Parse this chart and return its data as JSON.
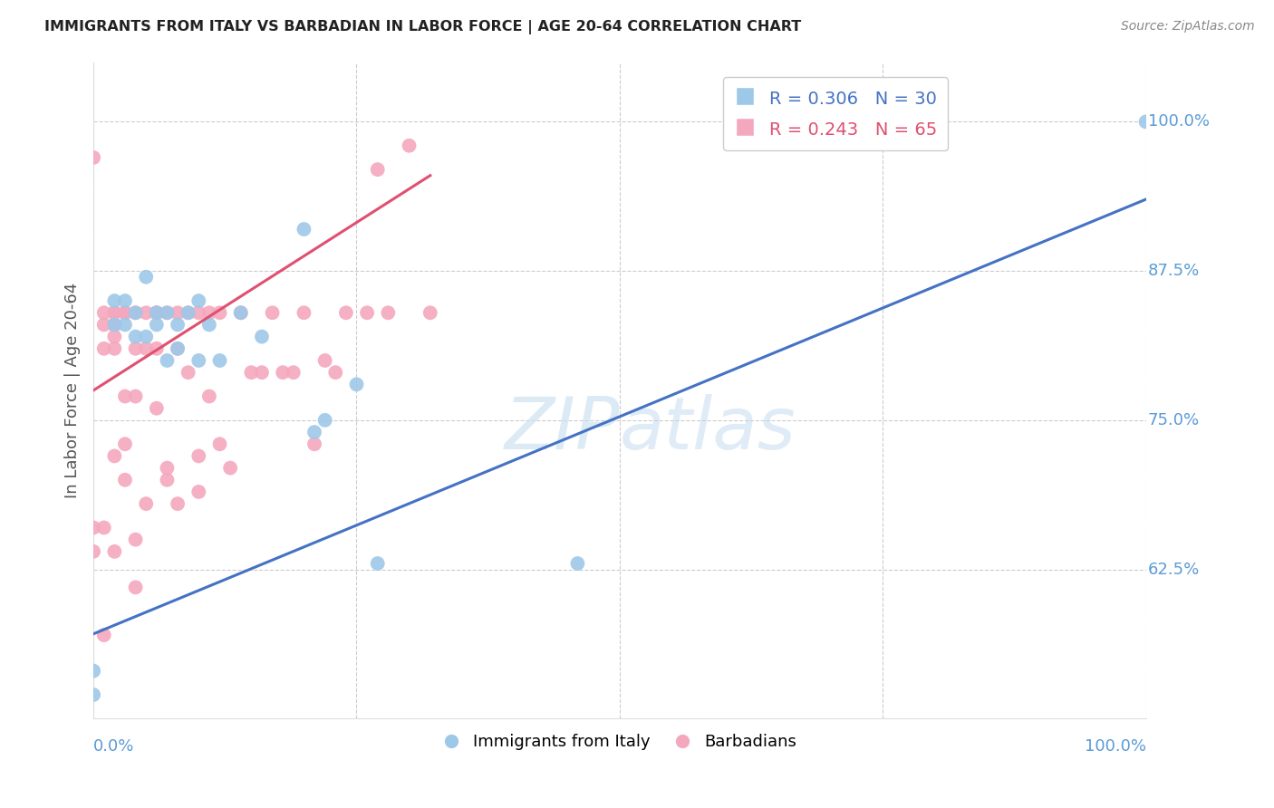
{
  "title": "IMMIGRANTS FROM ITALY VS BARBADIAN IN LABOR FORCE | AGE 20-64 CORRELATION CHART",
  "source": "Source: ZipAtlas.com",
  "ylabel": "In Labor Force | Age 20-64",
  "xlabel_italy": "Immigrants from Italy",
  "xlabel_barbadian": "Barbadians",
  "watermark_zip": "ZIP",
  "watermark_atlas": "atlas",
  "xlim": [
    0.0,
    1.0
  ],
  "ylim": [
    0.5,
    1.05
  ],
  "yticks": [
    0.625,
    0.75,
    0.875,
    1.0
  ],
  "ytick_labels": [
    "62.5%",
    "75.0%",
    "87.5%",
    "100.0%"
  ],
  "italy_color": "#9ec8e8",
  "barbadian_color": "#f4a8be",
  "italy_line_color": "#4472c4",
  "barbadian_line_color": "#e05070",
  "legend_italy_R": "0.306",
  "legend_italy_N": "30",
  "legend_barbadian_R": "0.243",
  "legend_barbadian_N": "65",
  "diagonal_color": "#cccccc",
  "italy_scatter_x": [
    0.0,
    0.0,
    0.02,
    0.02,
    0.03,
    0.03,
    0.04,
    0.04,
    0.05,
    0.05,
    0.06,
    0.06,
    0.07,
    0.07,
    0.08,
    0.08,
    0.09,
    0.1,
    0.1,
    0.11,
    0.12,
    0.14,
    0.16,
    0.2,
    0.21,
    0.22,
    0.25,
    0.27,
    0.46,
    1.0
  ],
  "italy_scatter_y": [
    0.52,
    0.54,
    0.83,
    0.85,
    0.83,
    0.85,
    0.82,
    0.84,
    0.82,
    0.87,
    0.83,
    0.84,
    0.8,
    0.84,
    0.81,
    0.83,
    0.84,
    0.8,
    0.85,
    0.83,
    0.8,
    0.84,
    0.82,
    0.91,
    0.74,
    0.75,
    0.78,
    0.63,
    0.63,
    1.0
  ],
  "barbadian_scatter_x": [
    0.0,
    0.0,
    0.0,
    0.01,
    0.01,
    0.01,
    0.01,
    0.01,
    0.02,
    0.02,
    0.02,
    0.02,
    0.02,
    0.02,
    0.02,
    0.02,
    0.03,
    0.03,
    0.03,
    0.03,
    0.03,
    0.04,
    0.04,
    0.04,
    0.04,
    0.04,
    0.05,
    0.05,
    0.05,
    0.06,
    0.06,
    0.06,
    0.06,
    0.07,
    0.07,
    0.07,
    0.08,
    0.08,
    0.08,
    0.09,
    0.09,
    0.1,
    0.1,
    0.1,
    0.11,
    0.11,
    0.12,
    0.12,
    0.13,
    0.14,
    0.15,
    0.16,
    0.17,
    0.18,
    0.19,
    0.2,
    0.21,
    0.22,
    0.23,
    0.24,
    0.26,
    0.27,
    0.28,
    0.3,
    0.32
  ],
  "barbadian_scatter_y": [
    0.64,
    0.66,
    0.97,
    0.57,
    0.66,
    0.81,
    0.83,
    0.84,
    0.64,
    0.72,
    0.81,
    0.82,
    0.83,
    0.84,
    0.83,
    0.84,
    0.7,
    0.73,
    0.77,
    0.84,
    0.84,
    0.61,
    0.65,
    0.77,
    0.81,
    0.84,
    0.68,
    0.81,
    0.84,
    0.76,
    0.81,
    0.84,
    0.84,
    0.7,
    0.71,
    0.84,
    0.68,
    0.81,
    0.84,
    0.79,
    0.84,
    0.69,
    0.72,
    0.84,
    0.77,
    0.84,
    0.73,
    0.84,
    0.71,
    0.84,
    0.79,
    0.79,
    0.84,
    0.79,
    0.79,
    0.84,
    0.73,
    0.8,
    0.79,
    0.84,
    0.84,
    0.96,
    0.84,
    0.98,
    0.84
  ],
  "italy_line_x0": 0.0,
  "italy_line_y0": 0.571,
  "italy_line_x1": 1.0,
  "italy_line_y1": 0.935,
  "barbadian_line_x0": 0.0,
  "barbadian_line_y0": 0.775,
  "barbadian_line_x1": 0.32,
  "barbadian_line_y1": 0.955
}
